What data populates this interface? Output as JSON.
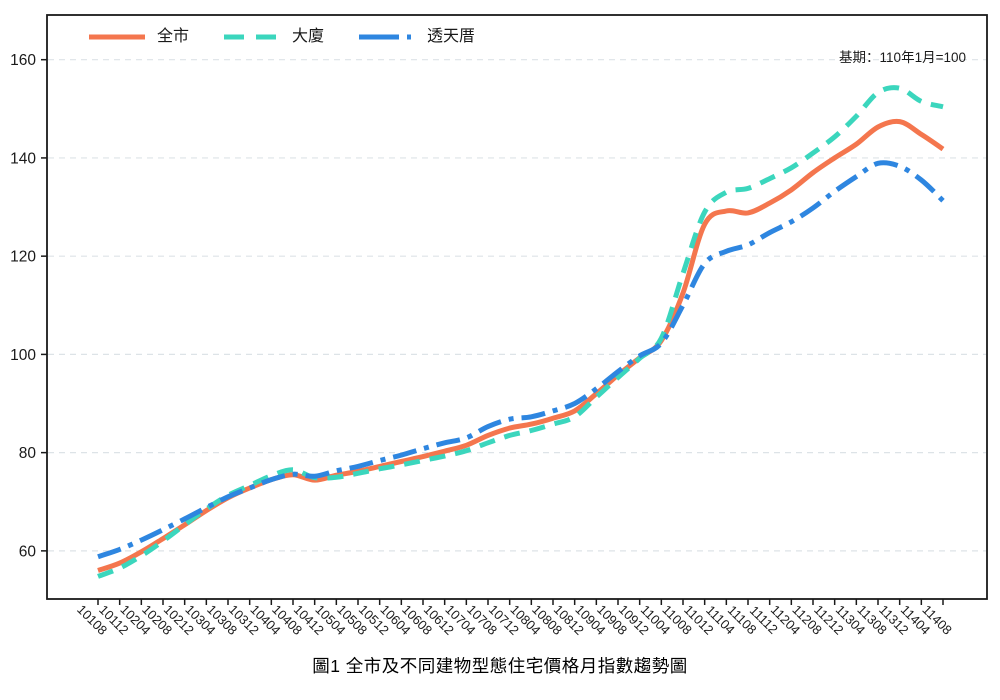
{
  "figure": {
    "caption": "圖1 全市及不同建物型態住宅價格月指數趨勢圖",
    "base_note": "基期：110年1月=100"
  },
  "chart_data": {
    "type": "line",
    "title": "圖1 全市及不同建物型態住宅價格月指數趨勢圖",
    "annotation": "基期：110年1月=100",
    "xlabel": "",
    "ylabel": "",
    "yticks": [
      60,
      80,
      100,
      120,
      140,
      160
    ],
    "ylim": [
      50.2,
      169.1
    ],
    "grid": "horizontal-dashed",
    "grid_color": "#dde3e7",
    "axis_color": "#1a1a1a",
    "legend_position": "top-left-inside",
    "categories": [
      "10108",
      "10112",
      "10204",
      "10208",
      "10212",
      "10304",
      "10308",
      "10312",
      "10404",
      "10408",
      "10412",
      "10504",
      "10508",
      "10512",
      "10604",
      "10608",
      "10612",
      "10704",
      "10708",
      "10712",
      "10804",
      "10808",
      "10812",
      "10904",
      "10908",
      "10912",
      "11004",
      "11008",
      "11012",
      "11104",
      "11108",
      "11112",
      "11204",
      "11208",
      "11212",
      "11304",
      "11308",
      "11312",
      "11404",
      "11408"
    ],
    "series": [
      {
        "name": "全市",
        "color": "#F4764E",
        "style": "solid",
        "values": [
          56.0,
          57.5,
          59.8,
          62.5,
          65.3,
          68.2,
          70.8,
          72.8,
          74.5,
          75.5,
          74.4,
          75.4,
          76.2,
          77.2,
          78.2,
          79.2,
          80.3,
          81.5,
          83.5,
          85.0,
          85.8,
          87.0,
          88.5,
          92.0,
          95.8,
          99.3,
          102.8,
          112.5,
          126.5,
          129.2,
          128.8,
          130.8,
          133.5,
          137.0,
          140.0,
          142.8,
          146.3,
          147.4,
          144.8,
          141.8
        ]
      },
      {
        "name": "大廈",
        "color": "#3BD6BD",
        "style": "dashed",
        "values": [
          54.8,
          56.5,
          59.0,
          62.0,
          65.3,
          68.5,
          71.3,
          73.3,
          75.3,
          76.5,
          74.9,
          75.0,
          75.8,
          76.7,
          77.5,
          78.4,
          79.3,
          80.4,
          82.0,
          83.5,
          84.5,
          85.8,
          87.3,
          91.3,
          95.3,
          99.2,
          103.3,
          116.5,
          129.0,
          133.0,
          133.8,
          135.8,
          138.0,
          141.0,
          144.3,
          148.5,
          153.3,
          154.2,
          151.5,
          150.4
        ]
      },
      {
        "name": "透天厝",
        "color": "#2E86E0",
        "style": "dashdot",
        "values": [
          58.8,
          60.3,
          62.2,
          64.3,
          66.5,
          68.8,
          71.0,
          72.8,
          74.5,
          75.6,
          75.2,
          76.3,
          77.2,
          78.4,
          79.5,
          80.8,
          82.0,
          83.0,
          85.3,
          86.8,
          87.3,
          88.5,
          90.0,
          93.0,
          96.5,
          99.7,
          102.3,
          110.0,
          118.5,
          121.0,
          122.3,
          124.8,
          127.0,
          129.8,
          133.2,
          136.2,
          138.9,
          138.3,
          135.5,
          131.3
        ]
      }
    ]
  }
}
